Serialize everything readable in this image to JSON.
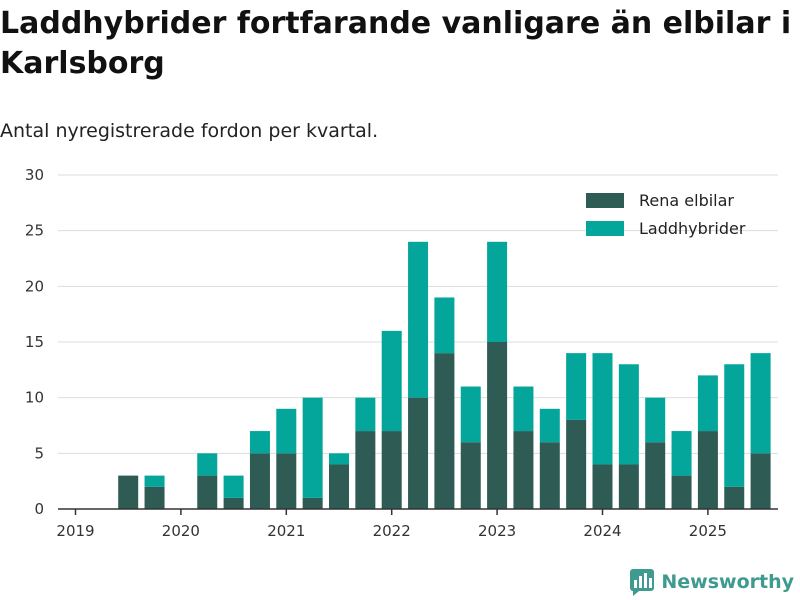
{
  "header": {
    "title": "Laddhybrider fortfarande vanligare än elbilar i Karlsborg",
    "subtitle": "Antal nyregistrerade fordon per kvartal."
  },
  "brand": {
    "name": "Newsworthy",
    "icon": "newsworthy-chart-logo-icon"
  },
  "colors": {
    "series1": "#2f5b55",
    "series2": "#04a59a",
    "grid": "#dddddd",
    "axis": "#333333"
  },
  "chart_data": {
    "type": "bar",
    "stacked": true,
    "categories": [
      "2019 Q1",
      "2019 Q2",
      "2019 Q3",
      "2019 Q4",
      "2020 Q1",
      "2020 Q2",
      "2020 Q3",
      "2020 Q4",
      "2021 Q1",
      "2021 Q2",
      "2021 Q3",
      "2021 Q4",
      "2022 Q1",
      "2022 Q2",
      "2022 Q3",
      "2022 Q4",
      "2023 Q1",
      "2023 Q2",
      "2023 Q3",
      "2023 Q4",
      "2024 Q1",
      "2024 Q2",
      "2024 Q3",
      "2024 Q4",
      "2025 Q1",
      "2025 Q2"
    ],
    "series": [
      {
        "name": "Rena elbilar",
        "values": [
          0,
          3,
          2,
          0,
          3,
          1,
          5,
          5,
          1,
          4,
          7,
          7,
          10,
          14,
          6,
          15,
          7,
          6,
          8,
          4,
          4,
          6,
          3,
          7,
          2,
          5
        ]
      },
      {
        "name": "Laddhybrider",
        "values": [
          0,
          0,
          1,
          0,
          2,
          2,
          2,
          4,
          9,
          1,
          3,
          9,
          14,
          5,
          5,
          9,
          4,
          3,
          6,
          10,
          9,
          4,
          4,
          5,
          11,
          9
        ]
      }
    ],
    "x_tick_labels": [
      "2019",
      "2020",
      "2021",
      "2022",
      "2023",
      "2024",
      "2025"
    ],
    "y_ticks": [
      "0",
      "5",
      "10",
      "15",
      "20",
      "25",
      "30"
    ],
    "ylim": [
      0,
      30
    ],
    "grid": true,
    "legend_position": "top-right",
    "xlabel": "",
    "ylabel": ""
  }
}
